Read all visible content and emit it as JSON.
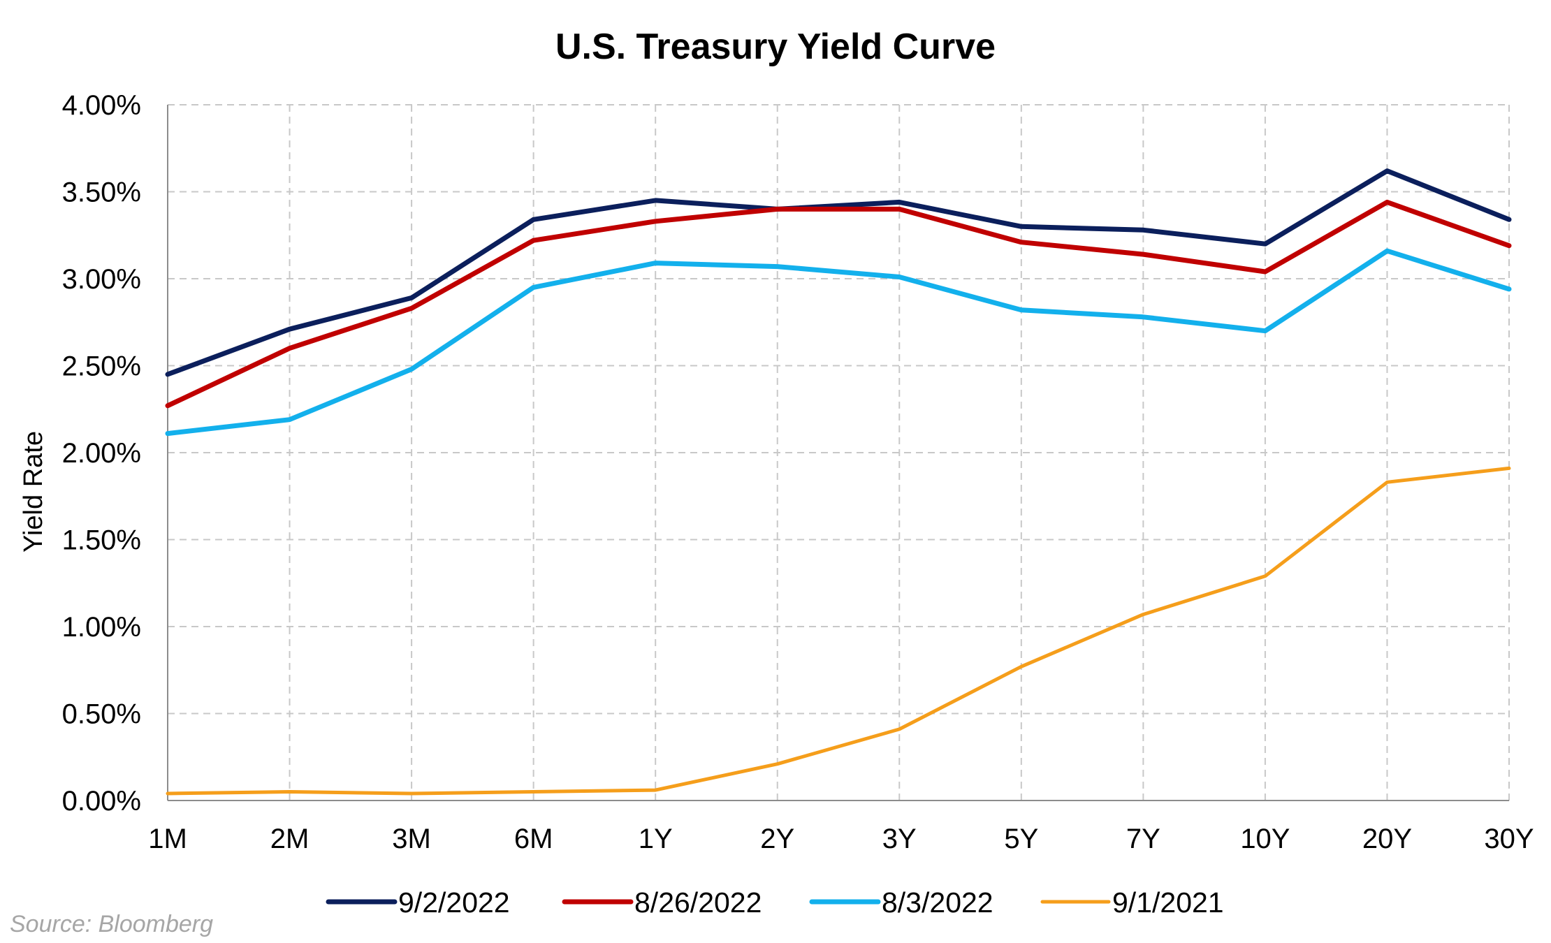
{
  "chart_data": {
    "type": "line",
    "title": "U.S. Treasury Yield Curve",
    "xlabel": "",
    "ylabel": "Yield Rate",
    "categories": [
      "1M",
      "2M",
      "3M",
      "6M",
      "1Y",
      "2Y",
      "3Y",
      "5Y",
      "7Y",
      "10Y",
      "20Y",
      "30Y"
    ],
    "ylim": [
      0,
      4.0
    ],
    "yticks": [
      "0.00%",
      "0.50%",
      "1.00%",
      "1.50%",
      "2.00%",
      "2.50%",
      "3.00%",
      "3.50%",
      "4.00%"
    ],
    "grid": true,
    "legend_position": "bottom",
    "series": [
      {
        "name": "9/2/2022",
        "color": "#0b1f5c",
        "values": [
          2.45,
          2.71,
          2.89,
          3.34,
          3.45,
          3.4,
          3.44,
          3.3,
          3.28,
          3.2,
          3.62,
          3.34
        ]
      },
      {
        "name": "8/26/2022",
        "color": "#c00000",
        "values": [
          2.27,
          2.6,
          2.83,
          3.22,
          3.33,
          3.4,
          3.4,
          3.21,
          3.14,
          3.04,
          3.44,
          3.19
        ]
      },
      {
        "name": "8/3/2022",
        "color": "#13b0ec",
        "values": [
          2.11,
          2.19,
          2.48,
          2.95,
          3.09,
          3.07,
          3.01,
          2.82,
          2.78,
          2.7,
          3.16,
          2.94
        ]
      },
      {
        "name": "9/1/2021",
        "color": "#f59e1b",
        "values": [
          0.04,
          0.05,
          0.04,
          0.05,
          0.06,
          0.21,
          0.41,
          0.77,
          1.07,
          1.29,
          1.83,
          1.91
        ]
      }
    ]
  },
  "footer": {
    "source": "Source: Bloomberg"
  }
}
